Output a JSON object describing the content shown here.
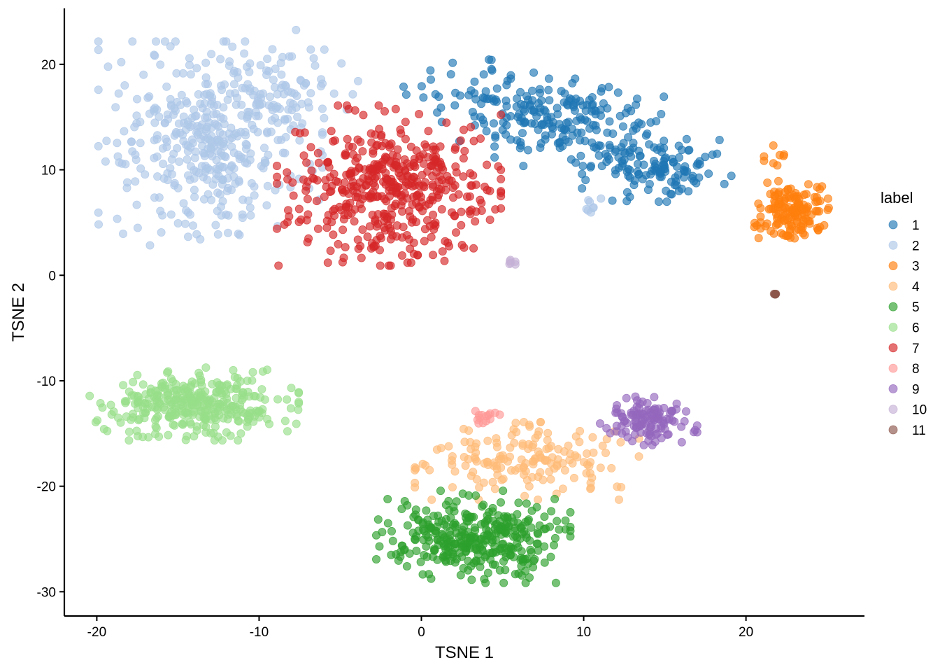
{
  "chart_data": {
    "type": "scatter",
    "title": "",
    "xlabel": "TSNE 1",
    "ylabel": "TSNE 2",
    "xlim": [
      -22,
      27.3
    ],
    "ylim": [
      -32.3,
      25.3
    ],
    "xticks": [
      -20,
      -10,
      0,
      10,
      20
    ],
    "yticks": [
      -30,
      -20,
      -10,
      0,
      10,
      20
    ],
    "grid": false,
    "legend": {
      "title": "label",
      "position": "right"
    },
    "point_alpha": 0.65,
    "series": [
      {
        "name": "1",
        "color": "#1F77B4",
        "clusters": [
          {
            "center": [
              8.5,
              14.5
            ],
            "spread": [
              2.8,
              1.8
            ],
            "n": 190
          },
          {
            "center": [
              14.5,
              10.2
            ],
            "spread": [
              2.0,
              1.4
            ],
            "n": 120
          },
          {
            "center": [
              3.5,
              17.0
            ],
            "spread": [
              2.0,
              1.5
            ],
            "n": 45
          }
        ]
      },
      {
        "name": "2",
        "color": "#AEC7E8",
        "clusters": [
          {
            "center": [
              -13.0,
              12.5
            ],
            "spread": [
              3.0,
              4.2
            ],
            "n": 380
          },
          {
            "center": [
              -8.5,
              17.5
            ],
            "spread": [
              2.0,
              2.5
            ],
            "n": 90
          },
          {
            "center": [
              10.5,
              6.5
            ],
            "spread": [
              0.6,
              0.5
            ],
            "n": 8
          }
        ]
      },
      {
        "name": "3",
        "color": "#FF7F0E",
        "clusters": [
          {
            "center": [
              22.8,
              6.0
            ],
            "spread": [
              1.0,
              1.3
            ],
            "n": 150
          },
          {
            "center": [
              21.8,
              10.0
            ],
            "spread": [
              0.3,
              1.0
            ],
            "n": 10
          }
        ]
      },
      {
        "name": "4",
        "color": "#FFBB78",
        "clusters": [
          {
            "center": [
              6.5,
              -17.6
            ],
            "spread": [
              3.0,
              1.6
            ],
            "n": 165
          }
        ]
      },
      {
        "name": "5",
        "color": "#2CA02C",
        "clusters": [
          {
            "center": [
              3.2,
              -24.8
            ],
            "spread": [
              2.6,
              1.9
            ],
            "n": 350
          }
        ]
      },
      {
        "name": "6",
        "color": "#98DF8A",
        "clusters": [
          {
            "center": [
              -14.0,
              -12.2
            ],
            "spread": [
              2.8,
              1.5
            ],
            "n": 340
          }
        ]
      },
      {
        "name": "7",
        "color": "#D62728",
        "clusters": [
          {
            "center": [
              -2.0,
              8.5
            ],
            "spread": [
              3.0,
              3.3
            ],
            "n": 460
          }
        ]
      },
      {
        "name": "8",
        "color": "#FF9896",
        "clusters": [
          {
            "center": [
              4.0,
              -13.5
            ],
            "spread": [
              0.5,
              0.5
            ],
            "n": 14
          }
        ]
      },
      {
        "name": "9",
        "color": "#9467BD",
        "clusters": [
          {
            "center": [
              14.0,
              -13.8
            ],
            "spread": [
              1.3,
              1.0
            ],
            "n": 120
          }
        ]
      },
      {
        "name": "10",
        "color": "#C5B0D5",
        "clusters": [
          {
            "center": [
              5.6,
              1.2
            ],
            "spread": [
              0.15,
              0.35
            ],
            "n": 6
          }
        ]
      },
      {
        "name": "11",
        "color": "#8C564B",
        "clusters": [
          {
            "center": [
              21.8,
              -1.8
            ],
            "spread": [
              0.03,
              0.03
            ],
            "n": 6
          }
        ]
      }
    ]
  }
}
